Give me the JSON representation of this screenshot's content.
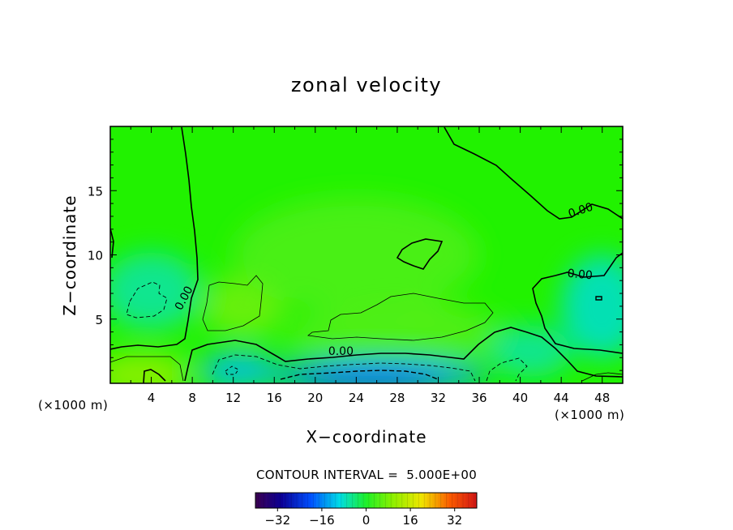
{
  "chart_data": {
    "type": "heatmap",
    "title": "zonal velocity",
    "xlabel": "X−coordinate",
    "ylabel": "Z−coordinate",
    "x_unit_left": "(×1000 m)",
    "x_unit_right": "(×1000 m)",
    "xlim": [
      0,
      50
    ],
    "ylim": [
      0,
      20
    ],
    "x_ticks": [
      {
        "value": 4,
        "label": "4"
      },
      {
        "value": 8,
        "label": "8"
      },
      {
        "value": 12,
        "label": "12"
      },
      {
        "value": 16,
        "label": "16"
      },
      {
        "value": 20,
        "label": "20"
      },
      {
        "value": 24,
        "label": "24"
      },
      {
        "value": 28,
        "label": "28"
      },
      {
        "value": 32,
        "label": "32"
      },
      {
        "value": 36,
        "label": "36"
      },
      {
        "value": 40,
        "label": "40"
      },
      {
        "value": 44,
        "label": "44"
      },
      {
        "value": 48,
        "label": "48"
      }
    ],
    "y_ticks": [
      {
        "value": 5,
        "label": "5"
      },
      {
        "value": 10,
        "label": "10"
      },
      {
        "value": 15,
        "label": "15"
      }
    ],
    "contour_interval_text": "CONTOUR INTERVAL =  5.000E+00",
    "contour_labels": [
      {
        "text": "0.00",
        "x": 7.5,
        "z": 6.5,
        "angle": -62
      },
      {
        "text": "0.00",
        "x": 22.5,
        "z": 2.2,
        "angle": 0
      },
      {
        "text": "0.00",
        "x": 46.0,
        "z": 13.2,
        "angle": -18
      },
      {
        "text": "0.00",
        "x": 45.8,
        "z": 8.2,
        "angle": 5
      }
    ],
    "colorbar": {
      "range": [
        -40,
        40
      ],
      "ticks": [
        {
          "value": -32,
          "label": "−32"
        },
        {
          "value": -16,
          "label": "−16"
        },
        {
          "value": 0,
          "label": "0"
        },
        {
          "value": 16,
          "label": "16"
        },
        {
          "value": 32,
          "label": "32"
        }
      ]
    },
    "field_regions": [
      {
        "value": 7,
        "x": 13,
        "z": 6,
        "rx": 4,
        "rz": 2.4
      },
      {
        "value": 6,
        "x": 29,
        "z": 4.9,
        "rx": 7.5,
        "rz": 1.5
      },
      {
        "value": 4,
        "x": 28,
        "z": 3.8,
        "rx": 11,
        "rz": 2.2
      },
      {
        "value": 4,
        "x": 24,
        "z": 10,
        "rx": 12,
        "rz": 4.5
      },
      {
        "value": -6,
        "x": 4,
        "z": 7.2,
        "rx": 4.8,
        "rz": 3
      },
      {
        "value": -8,
        "x": 48,
        "z": 6,
        "rx": 4,
        "rz": 4
      },
      {
        "value": -6,
        "x": 41,
        "z": 2.5,
        "rx": 4,
        "rz": 2
      },
      {
        "value": -14,
        "x": 26,
        "z": 0.6,
        "rx": 11,
        "rz": 1.3
      },
      {
        "value": -20,
        "x": 25.5,
        "z": 0.2,
        "rx": 7,
        "rz": 0.8
      },
      {
        "value": -12,
        "x": 12.5,
        "z": 1.0,
        "rx": 3.8,
        "rz": 1.4
      },
      {
        "value": 10,
        "x": 3,
        "z": 0.6,
        "rx": 4.8,
        "rz": 1.8
      }
    ]
  }
}
